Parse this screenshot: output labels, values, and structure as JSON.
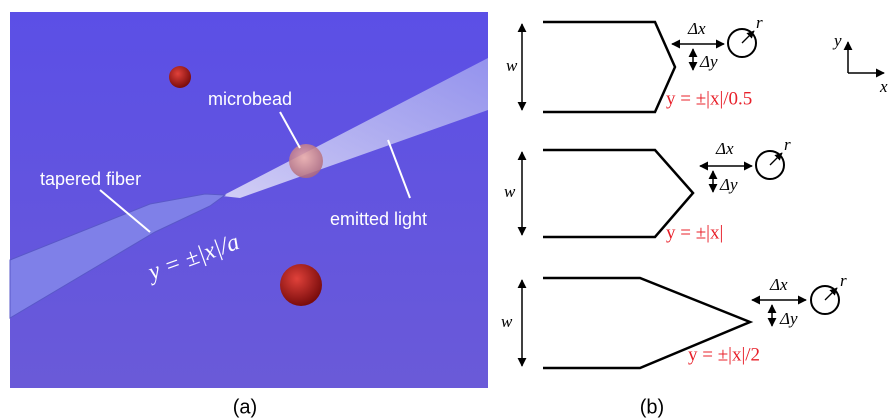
{
  "panel_a": {
    "labels": {
      "microbead": "microbead",
      "tapered_fiber": "tapered fiber",
      "emitted_light": "emitted light",
      "equation": "y = ±|x|/a"
    },
    "caption": "(a)"
  },
  "panel_b": {
    "axes": {
      "y": "y",
      "x": "x"
    },
    "shapes": [
      {
        "width": "w",
        "dx": "Δx",
        "dy": "Δy",
        "radius": "r",
        "equation": "y = ±|x|/0.5"
      },
      {
        "width": "w",
        "dx": "Δx",
        "dy": "Δy",
        "radius": "r",
        "equation": "y = ±|x|"
      },
      {
        "width": "w",
        "dx": "Δx",
        "dy": "Δy",
        "radius": "r",
        "equation": "y = ±|x|/2"
      }
    ],
    "caption": "(b)"
  }
}
